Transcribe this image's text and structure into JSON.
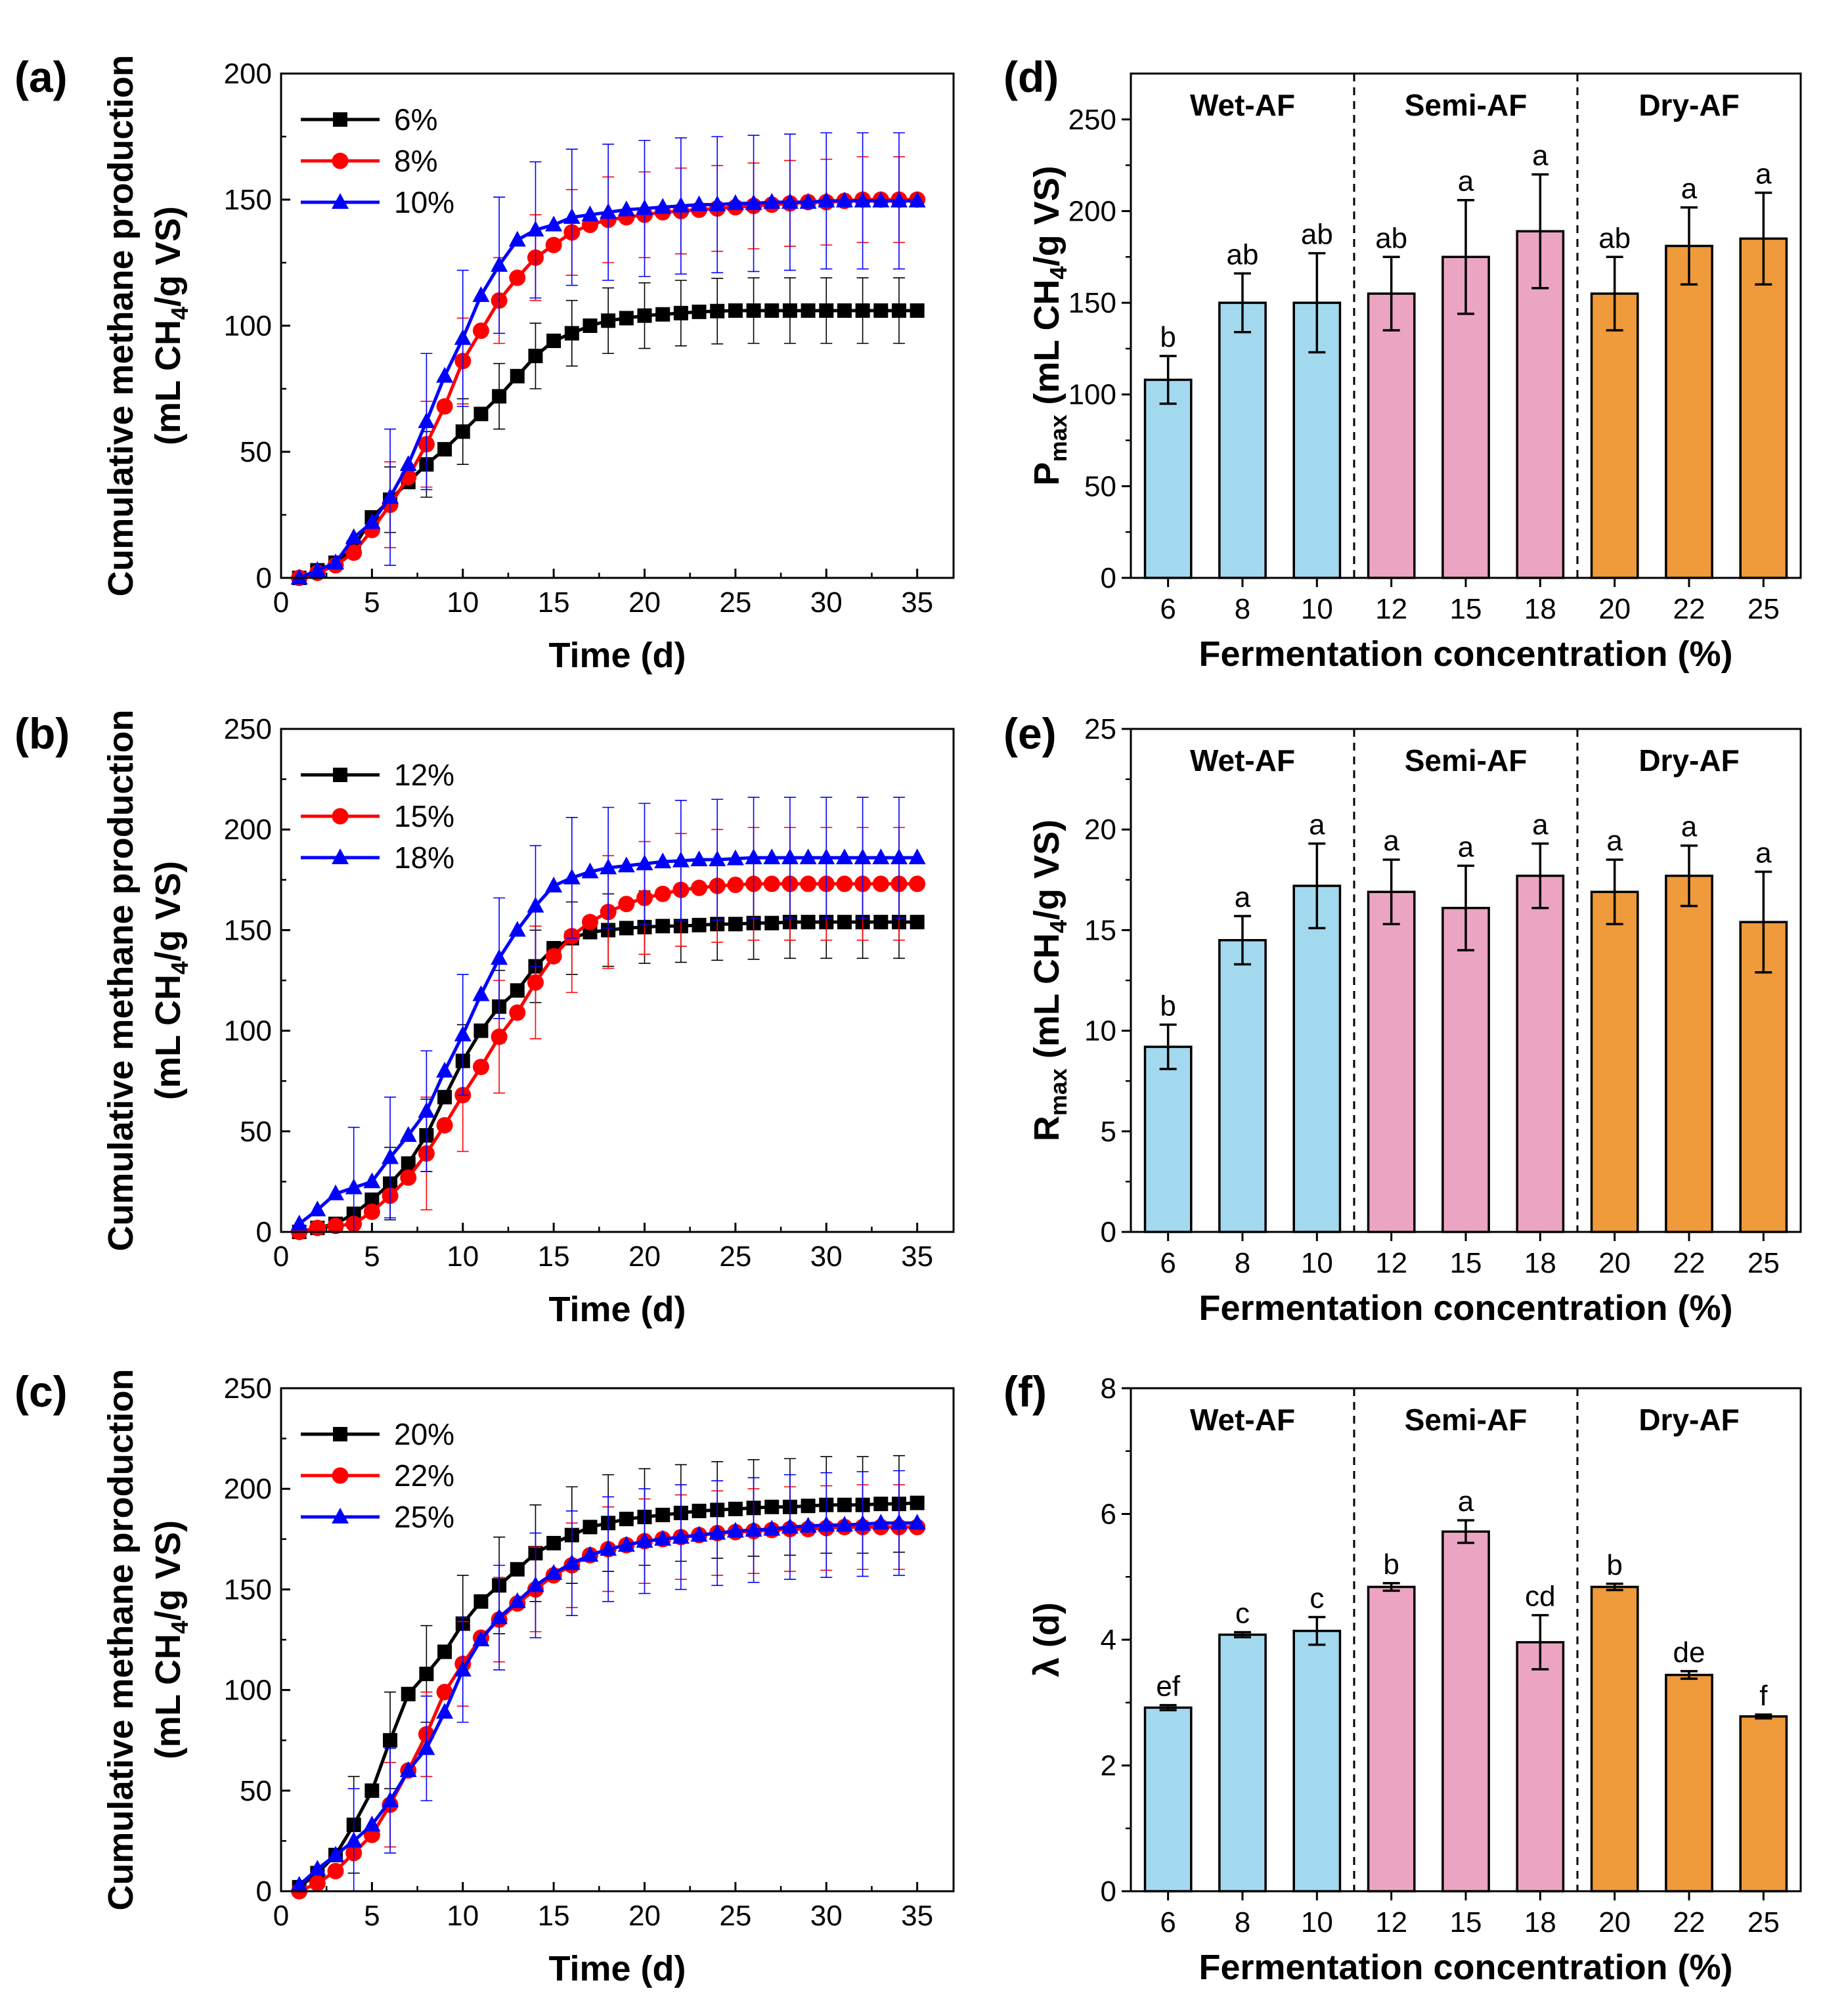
{
  "figure": {
    "colors": {
      "black": "#000000",
      "red": "#ff0000",
      "blue": "#0000ff",
      "wet": "#a3d9ee",
      "semi": "#eba5c3",
      "dry": "#ef9a3b"
    },
    "group_labels": [
      "Wet-AF",
      "Semi-AF",
      "Dry-AF"
    ]
  },
  "chart_data": [
    {
      "panel": "(a)",
      "type": "line",
      "title": "",
      "xlabel": "Time (d)",
      "ylabel_line1": "Cumulative methane production",
      "ylabel_line2_parts": [
        "(mL CH",
        "4",
        "/g VS)"
      ],
      "xlim": [
        0,
        37
      ],
      "ylim": [
        0,
        200
      ],
      "xticks": [
        0,
        5,
        10,
        15,
        20,
        25,
        30,
        35
      ],
      "yticks": [
        0,
        50,
        100,
        150,
        200
      ],
      "legend_position": "top-left",
      "series": [
        {
          "name": "6%",
          "color": "#000000",
          "marker": "square",
          "x": [
            1,
            2,
            3,
            4,
            5,
            6,
            7,
            8,
            9,
            10,
            11,
            12,
            13,
            14,
            15,
            16,
            17,
            18,
            19,
            20,
            21,
            22,
            23,
            24,
            25,
            26,
            27,
            28,
            29,
            30,
            31,
            32,
            33,
            34,
            35
          ],
          "y": [
            0,
            3,
            6,
            12,
            24,
            31,
            38,
            45,
            51,
            58,
            65,
            72,
            80,
            88,
            94,
            97,
            100,
            102,
            103,
            104,
            104.5,
            105,
            105.5,
            105.8,
            106,
            106,
            106,
            106,
            106,
            106,
            106,
            106,
            106,
            106,
            106
          ],
          "err": 13
        },
        {
          "name": "8%",
          "color": "#ff0000",
          "marker": "circle",
          "x": [
            1,
            2,
            3,
            4,
            5,
            6,
            7,
            8,
            9,
            10,
            11,
            12,
            13,
            14,
            15,
            16,
            17,
            18,
            19,
            20,
            21,
            22,
            23,
            24,
            25,
            26,
            27,
            28,
            29,
            30,
            31,
            32,
            33,
            34,
            35
          ],
          "y": [
            0,
            2,
            5,
            10,
            19,
            29,
            40,
            53,
            68,
            86,
            98,
            110,
            119,
            127,
            132,
            137,
            140,
            142,
            143,
            144,
            145,
            145.5,
            146,
            146.5,
            147,
            147.5,
            148,
            148.5,
            149,
            149,
            149.5,
            150,
            150,
            150,
            150
          ],
          "err": 17
        },
        {
          "name": "10%",
          "color": "#0000ff",
          "marker": "triangle",
          "x": [
            1,
            2,
            3,
            4,
            5,
            6,
            7,
            8,
            9,
            10,
            11,
            12,
            13,
            14,
            15,
            16,
            17,
            18,
            19,
            20,
            21,
            22,
            23,
            24,
            25,
            26,
            27,
            28,
            29,
            30,
            31,
            32,
            33,
            34,
            35
          ],
          "y": [
            0,
            3,
            6,
            16,
            22,
            32,
            45,
            62,
            80,
            95,
            112,
            124,
            134,
            138,
            140,
            143,
            144,
            145,
            146,
            146.5,
            147,
            147.5,
            148,
            148,
            148.5,
            148.5,
            149,
            149,
            149,
            149.5,
            149.5,
            149.5,
            149.5,
            149.5,
            149.5
          ],
          "err": 27
        }
      ]
    },
    {
      "panel": "(b)",
      "type": "line",
      "title": "",
      "xlabel": "Time (d)",
      "ylabel_line1": "Cumulative methane production",
      "ylabel_line2_parts": [
        "(mL CH",
        "4",
        "/g VS)"
      ],
      "xlim": [
        0,
        37
      ],
      "ylim": [
        0,
        250
      ],
      "xticks": [
        0,
        5,
        10,
        15,
        20,
        25,
        30,
        35
      ],
      "yticks": [
        0,
        50,
        100,
        150,
        200,
        250
      ],
      "legend_position": "top-left",
      "series": [
        {
          "name": "12%",
          "color": "#000000",
          "marker": "square",
          "x": [
            1,
            2,
            3,
            4,
            5,
            6,
            7,
            8,
            9,
            10,
            11,
            12,
            13,
            14,
            15,
            16,
            17,
            18,
            19,
            20,
            21,
            22,
            23,
            24,
            25,
            26,
            27,
            28,
            29,
            30,
            31,
            32,
            33,
            34,
            35
          ],
          "y": [
            0,
            2,
            4,
            9,
            16,
            24,
            34,
            48,
            67,
            85,
            100,
            112,
            120,
            132,
            141,
            146,
            149,
            150,
            151,
            151.5,
            152,
            152,
            152.5,
            153,
            153,
            153.5,
            153.5,
            154,
            154,
            154,
            154,
            154,
            154,
            154,
            154
          ],
          "err": 18
        },
        {
          "name": "15%",
          "color": "#ff0000",
          "marker": "circle",
          "x": [
            1,
            2,
            3,
            4,
            5,
            6,
            7,
            8,
            9,
            10,
            11,
            12,
            13,
            14,
            15,
            16,
            17,
            18,
            19,
            20,
            21,
            22,
            23,
            24,
            25,
            26,
            27,
            28,
            29,
            30,
            31,
            32,
            33,
            34,
            35
          ],
          "y": [
            0,
            2,
            3,
            4,
            10,
            18,
            27,
            39,
            53,
            68,
            82,
            97,
            109,
            124,
            137,
            147,
            154,
            159,
            163,
            166,
            168,
            170,
            171,
            172,
            172.5,
            173,
            173,
            173,
            173,
            173,
            173,
            173,
            173,
            173,
            173
          ],
          "err": 28
        },
        {
          "name": "18%",
          "color": "#0000ff",
          "marker": "triangle",
          "x": [
            1,
            2,
            3,
            4,
            5,
            6,
            7,
            8,
            9,
            10,
            11,
            12,
            13,
            14,
            15,
            16,
            17,
            18,
            19,
            20,
            21,
            22,
            23,
            24,
            25,
            26,
            27,
            28,
            29,
            30,
            31,
            32,
            33,
            34,
            35
          ],
          "y": [
            4,
            11,
            19,
            22,
            25,
            37,
            48,
            60,
            80,
            98,
            118,
            136,
            150,
            162,
            172,
            176,
            179,
            181,
            182,
            183,
            184,
            184.5,
            185,
            185,
            185.5,
            186,
            186,
            186,
            186,
            186,
            186,
            186,
            186,
            186,
            186
          ],
          "err": 30
        }
      ]
    },
    {
      "panel": "(c)",
      "type": "line",
      "title": "",
      "xlabel": "Time (d)",
      "ylabel_line1": "Cumulative methane production",
      "ylabel_line2_parts": [
        "(mL CH",
        "4",
        "/g VS)"
      ],
      "xlim": [
        0,
        37
      ],
      "ylim": [
        0,
        250
      ],
      "xticks": [
        0,
        5,
        10,
        15,
        20,
        25,
        30,
        35
      ],
      "yticks": [
        0,
        50,
        100,
        150,
        200,
        250
      ],
      "legend_position": "top-left",
      "series": [
        {
          "name": "20%",
          "color": "#000000",
          "marker": "square",
          "x": [
            1,
            2,
            3,
            4,
            5,
            6,
            7,
            8,
            9,
            10,
            11,
            12,
            13,
            14,
            15,
            16,
            17,
            18,
            19,
            20,
            21,
            22,
            23,
            24,
            25,
            26,
            27,
            28,
            29,
            30,
            31,
            32,
            33,
            34,
            35
          ],
          "y": [
            2,
            9,
            18,
            33,
            50,
            75,
            98,
            108,
            119,
            133,
            144,
            152,
            160,
            168,
            173,
            177,
            181,
            183,
            185,
            186,
            187,
            188,
            189,
            189.5,
            190,
            190.5,
            191,
            191,
            191.5,
            192,
            192,
            192,
            192.5,
            192.5,
            193
          ],
          "err": 24
        },
        {
          "name": "22%",
          "color": "#ff0000",
          "marker": "circle",
          "x": [
            1,
            2,
            3,
            4,
            5,
            6,
            7,
            8,
            9,
            10,
            11,
            12,
            13,
            14,
            15,
            16,
            17,
            18,
            19,
            20,
            21,
            22,
            23,
            24,
            25,
            26,
            27,
            28,
            29,
            30,
            31,
            32,
            33,
            34,
            35
          ],
          "y": [
            0,
            4,
            10,
            19,
            28,
            43,
            60,
            78,
            99,
            113,
            126,
            135,
            143,
            150,
            157,
            162,
            167,
            170,
            172,
            174,
            175,
            176,
            177,
            178,
            178.5,
            179,
            179.5,
            180,
            180,
            180.5,
            181,
            181,
            181,
            181,
            181
          ],
          "err": 21
        },
        {
          "name": "25%",
          "color": "#0000ff",
          "marker": "triangle",
          "x": [
            1,
            2,
            3,
            4,
            5,
            6,
            7,
            8,
            9,
            10,
            11,
            12,
            13,
            14,
            15,
            16,
            17,
            18,
            19,
            20,
            21,
            22,
            23,
            24,
            25,
            26,
            27,
            28,
            29,
            30,
            31,
            32,
            33,
            34,
            35
          ],
          "y": [
            3,
            11,
            18,
            25,
            33,
            45,
            60,
            71,
            89,
            110,
            125,
            136,
            144,
            152,
            158,
            163,
            167,
            170,
            172,
            174,
            175,
            176,
            177,
            178,
            179,
            179.5,
            180,
            181,
            181.5,
            182,
            182,
            182.5,
            183,
            183,
            183
          ],
          "err": 26
        }
      ]
    },
    {
      "panel": "(d)",
      "type": "bar",
      "title": "",
      "xlabel": "Fermentation concentration (%)",
      "ylabel_parts": [
        "P",
        "max",
        " (mL CH",
        "4",
        "/g VS)"
      ],
      "ylim": [
        0,
        275
      ],
      "yticks": [
        0,
        50,
        100,
        150,
        200,
        250
      ],
      "categories": [
        "6",
        "8",
        "10",
        "12",
        "15",
        "18",
        "20",
        "22",
        "25"
      ],
      "values": [
        108,
        150,
        150,
        155,
        175,
        189,
        155,
        181,
        185
      ],
      "errors": [
        13,
        16,
        27,
        20,
        31,
        31,
        20,
        21,
        25
      ],
      "letters": [
        "b",
        "ab",
        "ab",
        "ab",
        "a",
        "a",
        "ab",
        "a",
        "a"
      ],
      "groups": [
        "wet",
        "wet",
        "wet",
        "semi",
        "semi",
        "semi",
        "dry",
        "dry",
        "dry"
      ]
    },
    {
      "panel": "(e)",
      "type": "bar",
      "title": "",
      "xlabel": "Fermentation concentration (%)",
      "ylabel_parts": [
        "R",
        "max",
        " (mL CH",
        "4",
        "/g VS)"
      ],
      "ylim": [
        0,
        25
      ],
      "yticks": [
        0,
        5,
        10,
        15,
        20,
        25
      ],
      "categories": [
        "6",
        "8",
        "10",
        "12",
        "15",
        "18",
        "20",
        "22",
        "25"
      ],
      "values": [
        9.2,
        14.5,
        17.2,
        16.9,
        16.1,
        17.7,
        16.9,
        17.7,
        15.4
      ],
      "errors": [
        1.1,
        1.2,
        2.1,
        1.6,
        2.1,
        1.6,
        1.6,
        1.5,
        2.5
      ],
      "letters": [
        "b",
        "a",
        "a",
        "a",
        "a",
        "a",
        "a",
        "a",
        "a"
      ],
      "groups": [
        "wet",
        "wet",
        "wet",
        "semi",
        "semi",
        "semi",
        "dry",
        "dry",
        "dry"
      ]
    },
    {
      "panel": "(f)",
      "type": "bar",
      "title": "",
      "xlabel": "Fermentation concentration (%)",
      "ylabel_parts": [
        "λ (d)"
      ],
      "ylim": [
        0,
        8
      ],
      "yticks": [
        0,
        2,
        4,
        6,
        8
      ],
      "categories": [
        "6",
        "8",
        "10",
        "12",
        "15",
        "18",
        "20",
        "22",
        "25"
      ],
      "values": [
        2.92,
        4.08,
        4.14,
        4.84,
        5.72,
        3.96,
        4.84,
        3.44,
        2.78
      ],
      "errors": [
        0.04,
        0.04,
        0.22,
        0.06,
        0.18,
        0.43,
        0.05,
        0.06,
        0.03
      ],
      "letters": [
        "ef",
        "c",
        "c",
        "b",
        "a",
        "cd",
        "b",
        "de",
        "f"
      ],
      "groups": [
        "wet",
        "wet",
        "wet",
        "semi",
        "semi",
        "semi",
        "dry",
        "dry",
        "dry"
      ]
    }
  ]
}
